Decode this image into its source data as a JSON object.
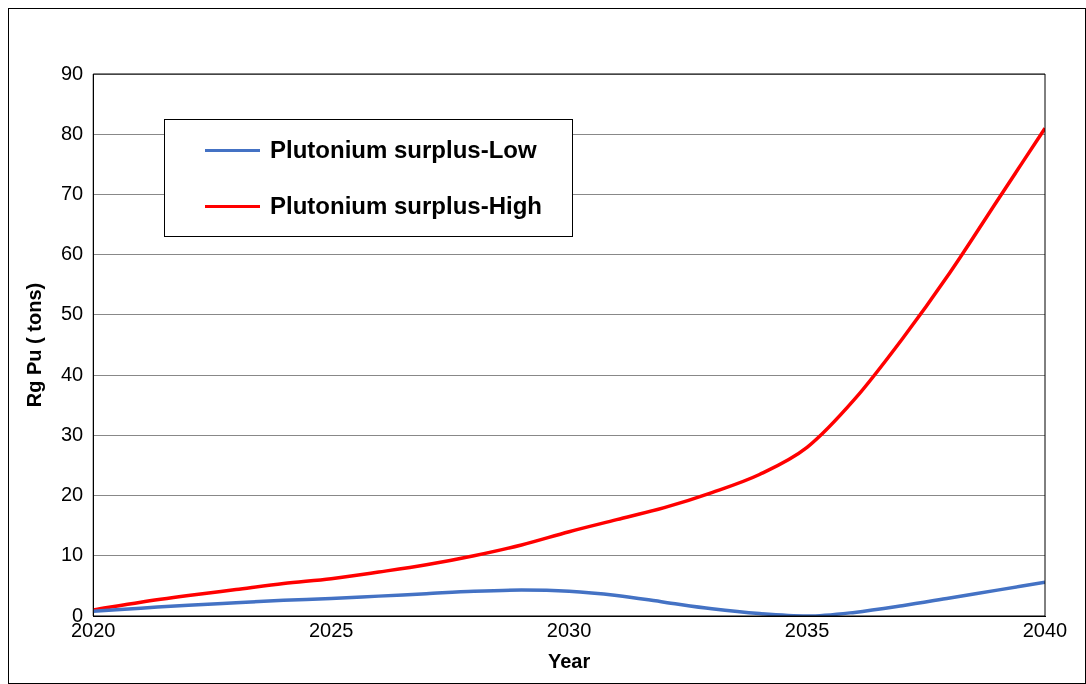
{
  "chart_data": {
    "type": "line",
    "xlabel": "Year",
    "ylabel": "Rg Pu ( tons)",
    "x": [
      2020,
      2021,
      2022,
      2023,
      2024,
      2025,
      2026,
      2027,
      2028,
      2029,
      2030,
      2031,
      2032,
      2033,
      2034,
      2035,
      2036,
      2037,
      2038,
      2039,
      2040
    ],
    "series": [
      {
        "name": "Plutonium surplus-Low",
        "color": "#4472c4",
        "values": [
          0.8,
          1.3,
          1.8,
          2.2,
          2.6,
          2.9,
          3.3,
          3.7,
          4.1,
          4.3,
          4.1,
          3.4,
          2.3,
          1.2,
          0.4,
          0,
          0.6,
          1.7,
          3,
          4.3,
          5.6
        ]
      },
      {
        "name": "Plutonium surplus-High",
        "color": "#ff0000",
        "values": [
          1,
          2.3,
          3.4,
          4.4,
          5.4,
          6.2,
          7.3,
          8.5,
          10,
          11.8,
          14,
          16,
          18,
          20.5,
          23.5,
          28,
          36,
          46,
          57,
          69,
          81
        ]
      }
    ],
    "xlim": [
      2020,
      2040
    ],
    "xticks": [
      2020,
      2025,
      2030,
      2035,
      2040
    ],
    "ylim": [
      0,
      90
    ],
    "yticks": [
      0,
      10,
      20,
      30,
      40,
      50,
      60,
      70,
      80,
      90
    ],
    "grid": "y",
    "legend": "top left",
    "marker": "none",
    "line_style": "solid"
  }
}
